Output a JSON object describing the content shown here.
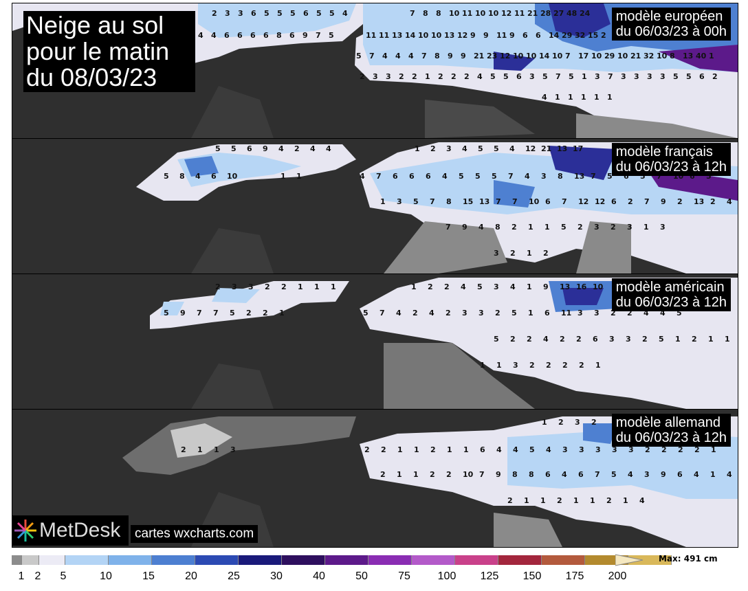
{
  "title": {
    "line1": "Neige au sol",
    "line2": "pour le matin",
    "line3": "du 08/03/23"
  },
  "panels": [
    {
      "model": "modèle européen",
      "run": "du 06/03/23 à 00h"
    },
    {
      "model": "modèle français",
      "run": "du 06/03/23 à 12h"
    },
    {
      "model": "modèle américain",
      "run": "du 06/03/23 à 12h"
    },
    {
      "model": "modèle allemand",
      "run": "du 06/03/23 à 12h"
    }
  ],
  "brand": {
    "name": "MetDesk",
    "credit": "cartes wxcharts.com"
  },
  "legend": {
    "max_label": "Max: 491 cm",
    "ticks": [
      "1",
      "2",
      "5",
      "10",
      "15",
      "20",
      "25",
      "30",
      "40",
      "50",
      "75",
      "100",
      "125",
      "150",
      "175",
      "200"
    ],
    "colors": [
      "#8c8c8c",
      "#c9c9c9",
      "#ecebf5",
      "#b3d4f5",
      "#7fb2ea",
      "#4d7fd1",
      "#2c4ab3",
      "#1a1a7a",
      "#2e0f5e",
      "#5d1a8a",
      "#8a2db3",
      "#b35ac9",
      "#c9418a",
      "#a3263d",
      "#b35a3d",
      "#b38a2e",
      "#d9b85a",
      "#efd890",
      "#f5e8c0"
    ]
  },
  "panel_numbers": {
    "p1": [
      "2",
      "3",
      "3",
      "6",
      "5",
      "5",
      "5",
      "6",
      "5",
      "5",
      "4",
      "4",
      "4",
      "6",
      "6",
      "6",
      "6",
      "8",
      "6",
      "9",
      "7",
      "5",
      "7",
      "8",
      "8",
      "10",
      "11",
      "10",
      "10",
      "12",
      "11",
      "21",
      "28",
      "27",
      "48",
      "24",
      "11",
      "11",
      "13",
      "14",
      "10",
      "10",
      "13",
      "12",
      "9",
      "9",
      "11",
      "9",
      "6",
      "6",
      "14",
      "29",
      "32",
      "15",
      "2",
      "5",
      "7",
      "4",
      "4",
      "4",
      "7",
      "8",
      "9",
      "9",
      "21",
      "23",
      "12",
      "10",
      "10",
      "14",
      "10",
      "7",
      "17",
      "10",
      "29",
      "10",
      "21",
      "32",
      "10",
      "8",
      "13",
      "40",
      "1",
      "2",
      "3",
      "3",
      "2",
      "2",
      "1",
      "2",
      "2",
      "2",
      "4",
      "5",
      "5",
      "6",
      "3",
      "5",
      "7",
      "5",
      "1",
      "3",
      "7",
      "3",
      "3",
      "3",
      "3",
      "5",
      "5",
      "6",
      "2",
      "4",
      "1",
      "1",
      "1",
      "1",
      "1",
      "1",
      "2",
      "1"
    ],
    "p2": [
      "5",
      "5",
      "6",
      "9",
      "4",
      "2",
      "4",
      "4",
      "1",
      "2",
      "3",
      "4",
      "5",
      "5",
      "4",
      "12",
      "21",
      "13",
      "17",
      "5",
      "8",
      "4",
      "6",
      "10",
      "1",
      "1",
      "4",
      "7",
      "6",
      "6",
      "6",
      "4",
      "5",
      "5",
      "5",
      "7",
      "4",
      "3",
      "8",
      "13",
      "7",
      "5",
      "6",
      "5",
      "7",
      "10",
      "6",
      "5",
      "1",
      "3",
      "5",
      "7",
      "8",
      "15",
      "13",
      "7",
      "7",
      "10",
      "6",
      "7",
      "12",
      "12",
      "6",
      "2",
      "7",
      "9",
      "2",
      "13",
      "2",
      "4",
      "7",
      "9",
      "4",
      "8",
      "2",
      "1",
      "1",
      "5",
      "2",
      "3",
      "2",
      "3",
      "1",
      "3",
      "3",
      "2",
      "1",
      "2"
    ],
    "p3": [
      "2",
      "3",
      "3",
      "2",
      "2",
      "1",
      "1",
      "1",
      "1",
      "2",
      "2",
      "4",
      "5",
      "3",
      "4",
      "1",
      "9",
      "13",
      "16",
      "10",
      "5",
      "9",
      "7",
      "7",
      "5",
      "2",
      "2",
      "1",
      "5",
      "7",
      "4",
      "2",
      "4",
      "2",
      "3",
      "3",
      "2",
      "5",
      "1",
      "6",
      "11",
      "3",
      "3",
      "2",
      "2",
      "4",
      "4",
      "5",
      "5",
      "2",
      "2",
      "4",
      "2",
      "2",
      "6",
      "3",
      "3",
      "2",
      "5",
      "1",
      "2",
      "1",
      "1",
      "4",
      "1",
      "1",
      "3",
      "2",
      "2",
      "2",
      "2",
      "1"
    ],
    "p4": [
      "1",
      "2",
      "3",
      "2",
      "2",
      "1",
      "1",
      "3",
      "2",
      "2",
      "1",
      "1",
      "2",
      "1",
      "1",
      "6",
      "4",
      "4",
      "5",
      "4",
      "3",
      "3",
      "3",
      "3",
      "3",
      "2",
      "2",
      "2",
      "2",
      "1",
      "2",
      "1",
      "1",
      "2",
      "2",
      "10",
      "7",
      "9",
      "8",
      "8",
      "6",
      "4",
      "6",
      "7",
      "5",
      "4",
      "3",
      "9",
      "6",
      "4",
      "1",
      "4",
      "2",
      "1",
      "1",
      "2",
      "1",
      "1",
      "2",
      "1",
      "4"
    ]
  }
}
